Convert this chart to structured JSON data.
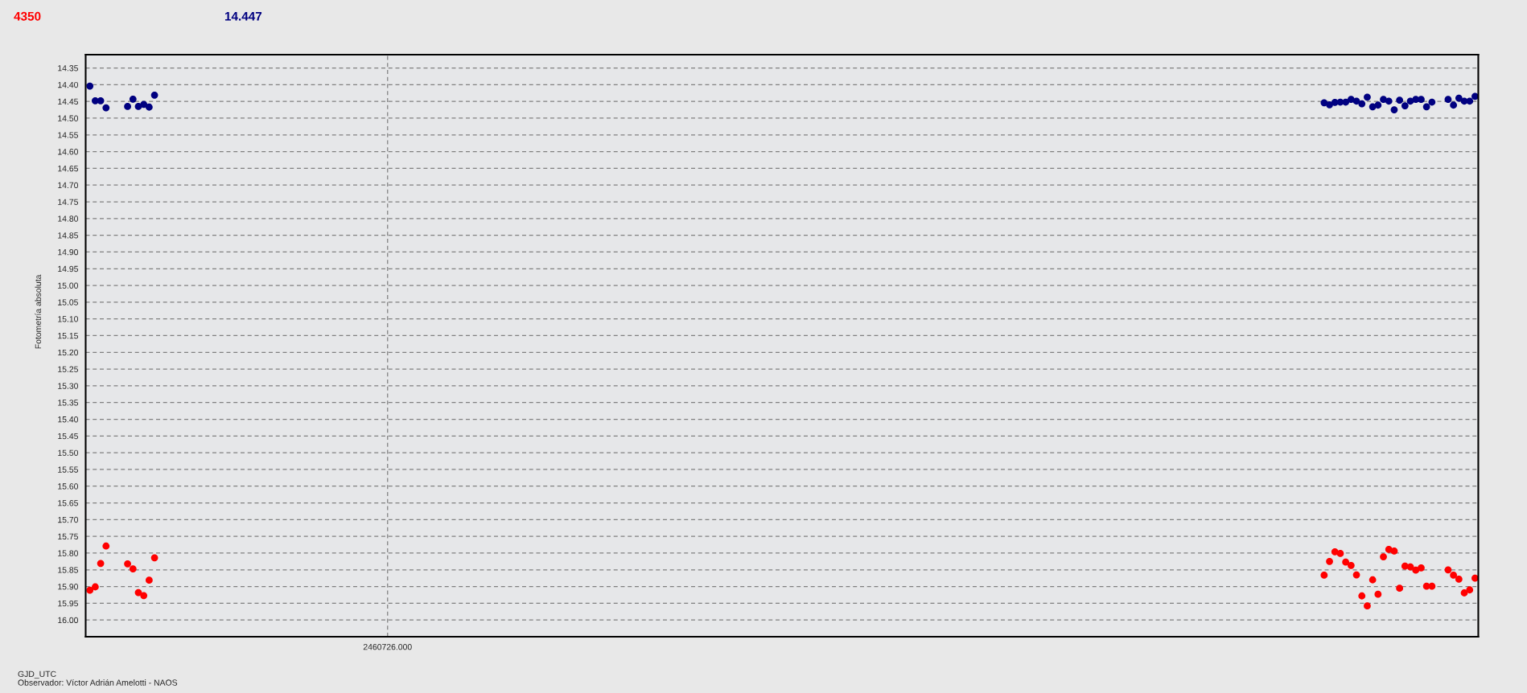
{
  "chart_data": {
    "type": "scatter",
    "xlabel": "GJD_UTC",
    "ylabel": "Fotometría absoluta",
    "annotations": [
      "4350",
      "14.447",
      "2460726.000",
      "Observador: Víctor Adrián Amelotti - NAOS"
    ],
    "categories": [
      null,
      null,
      null,
      null,
      null,
      null,
      null,
      null,
      null,
      null,
      null,
      null,
      null,
      null,
      null,
      null,
      null,
      null,
      null,
      null,
      null,
      null,
      null,
      null,
      null,
      null,
      null,
      null,
      null,
      null,
      null,
      null,
      null,
      null,
      null,
      null,
      null,
      null,
      null,
      null,
      null,
      null,
      null,
      null,
      null,
      null,
      null,
      null,
      null,
      null,
      null,
      null,
      null,
      null,
      null,
      null,
      null,
      null,
      null,
      null,
      null,
      null,
      null,
      null,
      null,
      null,
      null,
      null,
      null,
      null,
      null,
      null,
      null,
      null,
      null,
      null,
      null,
      null,
      null,
      null,
      null,
      null,
      null,
      null,
      null,
      null,
      null,
      null,
      null,
      null,
      null,
      null,
      null,
      null,
      null,
      null,
      null,
      null,
      null,
      null,
      null,
      null,
      null,
      null,
      null,
      null,
      null,
      null,
      null,
      null,
      null,
      null,
      null,
      null,
      null,
      null,
      null,
      null,
      null,
      null,
      null,
      null,
      null,
      null,
      null,
      null,
      null,
      null,
      null,
      null,
      null,
      null,
      null,
      null,
      null,
      null,
      null,
      null,
      null,
      null,
      null,
      null,
      null,
      null,
      null,
      null,
      null,
      null,
      null,
      null,
      null,
      null,
      null,
      null,
      null,
      null,
      null,
      null,
      null,
      null,
      null,
      null,
      null,
      null,
      null,
      null,
      null,
      null,
      null,
      null,
      null,
      null,
      null,
      null,
      null,
      null,
      null,
      null,
      null,
      null,
      null,
      null,
      null,
      null,
      null,
      null,
      null,
      null,
      null,
      null,
      null,
      null,
      null,
      null,
      null,
      null,
      null,
      null,
      null,
      null,
      null,
      null,
      null,
      null,
      null,
      null,
      null,
      null,
      null,
      null,
      null,
      null,
      null,
      null,
      null,
      null,
      null,
      null,
      null,
      null,
      null,
      null,
      null,
      null,
      null,
      null,
      null,
      null,
      null,
      null,
      null,
      null,
      null,
      null,
      null,
      null,
      null,
      null,
      null,
      null,
      null,
      null,
      null,
      null,
      null,
      null,
      null,
      null,
      null,
      null,
      null,
      null,
      null,
      null,
      null,
      null,
      null,
      null
    ],
    "series": [
      {
        "color": "#ff0000",
        "values": [
          15.911,
          15.901,
          15.831,
          15.779,
          null,
          null,
          null,
          15.832,
          15.847,
          15.918,
          15.927,
          15.881,
          15.814,
          null,
          null,
          null,
          null,
          null,
          null,
          null,
          null,
          null,
          null,
          null,
          null,
          null,
          null,
          null,
          null,
          null,
          null,
          null,
          null,
          null,
          null,
          null,
          null,
          null,
          null,
          null,
          null,
          null,
          null,
          null,
          null,
          null,
          null,
          null,
          null,
          null,
          null,
          null,
          null,
          null,
          null,
          null,
          null,
          null,
          null,
          null,
          null,
          null,
          null,
          null,
          null,
          null,
          null,
          null,
          null,
          null,
          null,
          null,
          null,
          null,
          null,
          null,
          null,
          null,
          null,
          null,
          null,
          null,
          null,
          null,
          null,
          null,
          null,
          null,
          null,
          null,
          null,
          null,
          null,
          null,
          null,
          null,
          null,
          null,
          null,
          null,
          null,
          null,
          null,
          null,
          null,
          null,
          null,
          null,
          null,
          null,
          null,
          null,
          null,
          null,
          null,
          null,
          null,
          null,
          null,
          null,
          null,
          null,
          null,
          null,
          null,
          null,
          null,
          null,
          null,
          null,
          null,
          null,
          null,
          null,
          null,
          null,
          null,
          null,
          null,
          null,
          null,
          null,
          null,
          null,
          null,
          null,
          null,
          null,
          null,
          null,
          null,
          null,
          null,
          null,
          null,
          null,
          null,
          null,
          null,
          null,
          null,
          null,
          null,
          null,
          null,
          null,
          null,
          null,
          null,
          null,
          null,
          null,
          null,
          null,
          null,
          null,
          null,
          null,
          null,
          null,
          null,
          null,
          null,
          null,
          null,
          null,
          null,
          null,
          null,
          null,
          null,
          null,
          null,
          null,
          null,
          null,
          null,
          null,
          null,
          null,
          null,
          null,
          null,
          null,
          null,
          null,
          null,
          null,
          null,
          null,
          null,
          null,
          null,
          null,
          null,
          null,
          null,
          null,
          null,
          null,
          null,
          null,
          null,
          null,
          null,
          null,
          null,
          null,
          null,
          15.866,
          15.825,
          15.796,
          15.801,
          15.827,
          15.837,
          15.865,
          15.928,
          15.958,
          15.88,
          15.923,
          15.811,
          15.789,
          15.794,
          15.905,
          15.839,
          15.841,
          15.851,
          15.844,
          15.899,
          15.899,
          null,
          null,
          15.85,
          15.866,
          15.878,
          15.919,
          15.91,
          15.875
        ]
      },
      {
        "color": "#000080",
        "values": [
          14.404,
          14.448,
          14.448,
          14.469,
          null,
          null,
          null,
          14.465,
          14.443,
          14.465,
          14.459,
          14.467,
          14.431,
          null,
          null,
          null,
          null,
          null,
          null,
          null,
          null,
          null,
          null,
          null,
          null,
          null,
          null,
          null,
          null,
          null,
          null,
          null,
          null,
          null,
          null,
          null,
          null,
          null,
          null,
          null,
          null,
          null,
          null,
          null,
          null,
          null,
          null,
          null,
          null,
          null,
          null,
          null,
          null,
          null,
          null,
          null,
          null,
          null,
          null,
          null,
          null,
          null,
          null,
          null,
          null,
          null,
          null,
          null,
          null,
          null,
          null,
          null,
          null,
          null,
          null,
          null,
          null,
          null,
          null,
          null,
          null,
          null,
          null,
          null,
          null,
          null,
          null,
          null,
          null,
          null,
          null,
          null,
          null,
          null,
          null,
          null,
          null,
          null,
          null,
          null,
          null,
          null,
          null,
          null,
          null,
          null,
          null,
          null,
          null,
          null,
          null,
          null,
          null,
          null,
          null,
          null,
          null,
          null,
          null,
          null,
          null,
          null,
          null,
          null,
          null,
          null,
          null,
          null,
          null,
          null,
          null,
          null,
          null,
          null,
          null,
          null,
          null,
          null,
          null,
          null,
          null,
          null,
          null,
          null,
          null,
          null,
          null,
          null,
          null,
          null,
          null,
          null,
          null,
          null,
          null,
          null,
          null,
          null,
          null,
          null,
          null,
          null,
          null,
          null,
          null,
          null,
          null,
          null,
          null,
          null,
          null,
          null,
          null,
          null,
          null,
          null,
          null,
          null,
          null,
          null,
          null,
          null,
          null,
          null,
          null,
          null,
          null,
          null,
          null,
          null,
          null,
          null,
          null,
          null,
          null,
          null,
          null,
          null,
          null,
          null,
          null,
          null,
          null,
          null,
          null,
          null,
          null,
          null,
          null,
          null,
          null,
          null,
          null,
          null,
          null,
          null,
          null,
          null,
          null,
          null,
          null,
          null,
          null,
          null,
          null,
          null,
          null,
          null,
          null,
          14.454,
          14.46,
          14.453,
          14.452,
          14.452,
          14.444,
          14.449,
          14.457,
          14.437,
          14.466,
          14.461,
          14.444,
          14.449,
          14.475,
          14.446,
          14.463,
          14.449,
          14.444,
          14.444,
          14.466,
          14.452,
          null,
          null,
          14.444,
          14.461,
          14.44,
          14.449,
          14.449,
          14.435
        ]
      }
    ],
    "ylim": [
      16.05,
      14.31
    ],
    "yticks": [
      {
        "value": 14.35,
        "label": "14.35"
      },
      {
        "value": 14.4,
        "label": "14.40"
      },
      {
        "value": 14.45,
        "label": "14.45"
      },
      {
        "value": 14.5,
        "label": "14.50"
      },
      {
        "value": 14.55,
        "label": "14.55"
      },
      {
        "value": 14.6,
        "label": "14.60"
      },
      {
        "value": 14.65,
        "label": "14.65"
      },
      {
        "value": 14.7,
        "label": "14.70"
      },
      {
        "value": 14.75,
        "label": "14.75"
      },
      {
        "value": 14.8,
        "label": "14.80"
      },
      {
        "value": 14.85,
        "label": "14.85"
      },
      {
        "value": 14.9,
        "label": "14.90"
      },
      {
        "value": 14.95,
        "label": "14.95"
      },
      {
        "value": 15.0,
        "label": "15.00"
      },
      {
        "value": 15.05,
        "label": "15.05"
      },
      {
        "value": 15.1,
        "label": "15.10"
      },
      {
        "value": 15.15,
        "label": "15.15"
      },
      {
        "value": 15.2,
        "label": "15.20"
      },
      {
        "value": 15.25,
        "label": "15.25"
      },
      {
        "value": 15.3,
        "label": "15.30"
      },
      {
        "value": 15.35,
        "label": "15.35"
      },
      {
        "value": 15.4,
        "label": "15.40"
      },
      {
        "value": 15.45,
        "label": "15.45"
      },
      {
        "value": 15.5,
        "label": "15.50"
      },
      {
        "value": 15.55,
        "label": "15.55"
      },
      {
        "value": 15.6,
        "label": "15.60"
      },
      {
        "value": 15.65,
        "label": "15.65"
      },
      {
        "value": 15.7,
        "label": "15.70"
      },
      {
        "value": 15.75,
        "label": "15.75"
      },
      {
        "value": 15.8,
        "label": "15.80"
      },
      {
        "value": 15.85,
        "label": "15.85"
      },
      {
        "value": 15.9,
        "label": "15.90"
      },
      {
        "value": 15.95,
        "label": "15.95"
      },
      {
        "value": 16.0,
        "label": "16.00"
      }
    ],
    "grid": "y",
    "marker": "circle"
  }
}
